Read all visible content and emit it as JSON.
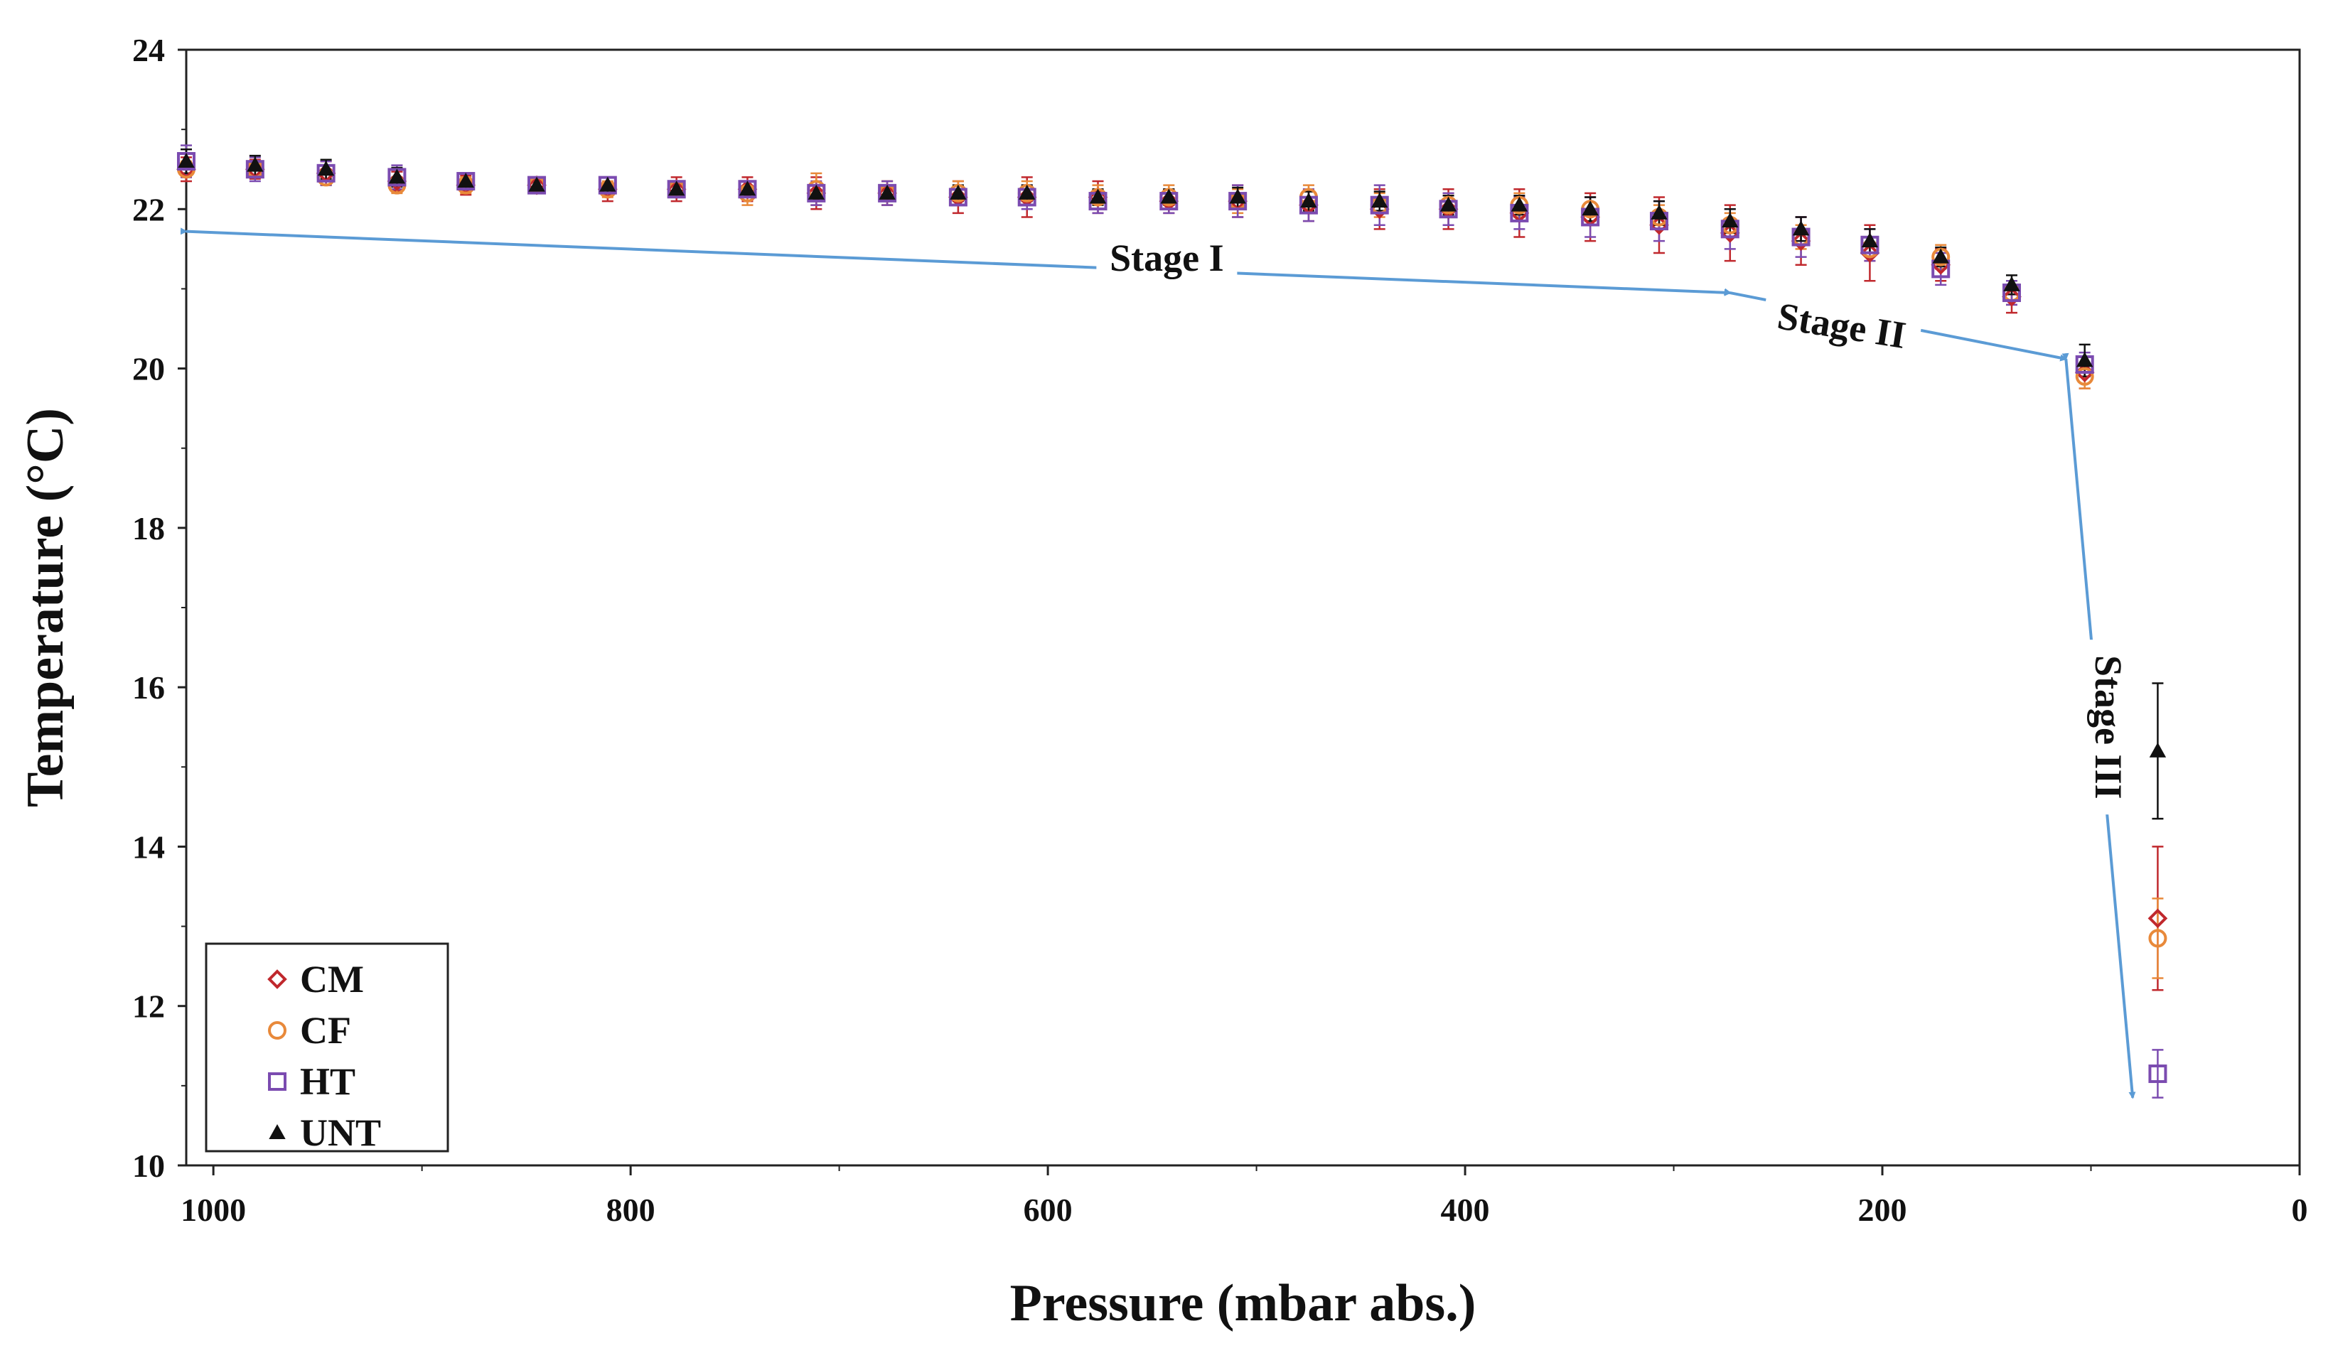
{
  "chart_data": {
    "type": "scatter",
    "title": "",
    "xlabel": "Pressure (mbar abs.)",
    "ylabel": "Temperature (°C)",
    "xlim": [
      1013,
      0
    ],
    "ylim": [
      10,
      24
    ],
    "x_ticks": [
      1000,
      800,
      600,
      400,
      200,
      0
    ],
    "y_ticks": [
      10,
      12,
      14,
      16,
      18,
      20,
      22,
      24
    ],
    "x_tick_labels": [
      "1000",
      "800",
      "600",
      "400",
      "200",
      "0"
    ],
    "y_tick_labels": [
      "10",
      "12",
      "14",
      "16",
      "18",
      "20",
      "22",
      "24"
    ],
    "grid": false,
    "legend_position": "bottom-left",
    "x": [
      1013,
      980,
      946,
      912,
      879,
      845,
      811,
      778,
      744,
      711,
      677,
      643,
      610,
      576,
      542,
      509,
      475,
      441,
      408,
      374,
      340,
      307,
      273,
      239,
      206,
      172,
      138,
      103,
      68
    ],
    "series": [
      {
        "name": "CM",
        "color": "#c0282d",
        "marker": "diamond",
        "values": [
          22.5,
          22.5,
          22.45,
          22.35,
          22.3,
          22.3,
          22.25,
          22.25,
          22.25,
          22.2,
          22.2,
          22.15,
          22.15,
          22.15,
          22.1,
          22.1,
          22.05,
          22.0,
          22.0,
          21.95,
          21.9,
          21.8,
          21.7,
          21.6,
          21.45,
          21.3,
          20.9,
          19.95,
          13.1
        ],
        "errors": [
          0.15,
          0.12,
          0.15,
          0.12,
          0.12,
          0.1,
          0.15,
          0.15,
          0.15,
          0.2,
          0.15,
          0.2,
          0.25,
          0.2,
          0.15,
          0.2,
          0.2,
          0.25,
          0.25,
          0.3,
          0.3,
          0.35,
          0.35,
          0.3,
          0.35,
          0.2,
          0.2,
          0.2,
          0.9
        ]
      },
      {
        "name": "CF",
        "color": "#e8893a",
        "marker": "circle",
        "values": [
          22.5,
          22.5,
          22.4,
          22.3,
          22.3,
          22.3,
          22.25,
          22.25,
          22.2,
          22.25,
          22.2,
          22.2,
          22.2,
          22.15,
          22.15,
          22.1,
          22.15,
          22.05,
          22.05,
          22.05,
          22.0,
          21.9,
          21.8,
          21.65,
          21.5,
          21.4,
          20.95,
          19.9,
          12.85
        ],
        "errors": [
          0.1,
          0.1,
          0.1,
          0.1,
          0.1,
          0.1,
          0.1,
          0.1,
          0.15,
          0.2,
          0.15,
          0.15,
          0.15,
          0.15,
          0.15,
          0.15,
          0.15,
          0.15,
          0.15,
          0.15,
          0.15,
          0.15,
          0.15,
          0.15,
          0.15,
          0.15,
          0.15,
          0.15,
          0.5
        ]
      },
      {
        "name": "HT",
        "color": "#7b4bb0",
        "marker": "square",
        "values": [
          22.6,
          22.5,
          22.45,
          22.4,
          22.35,
          22.3,
          22.3,
          22.25,
          22.25,
          22.2,
          22.2,
          22.15,
          22.15,
          22.1,
          22.1,
          22.1,
          22.05,
          22.05,
          22.0,
          21.95,
          21.9,
          21.85,
          21.75,
          21.65,
          21.55,
          21.25,
          20.95,
          20.05,
          11.15
        ],
        "errors": [
          0.2,
          0.15,
          0.15,
          0.15,
          0.1,
          0.1,
          0.1,
          0.1,
          0.1,
          0.15,
          0.15,
          0.1,
          0.15,
          0.15,
          0.15,
          0.2,
          0.2,
          0.25,
          0.2,
          0.2,
          0.25,
          0.25,
          0.25,
          0.25,
          0.2,
          0.2,
          0.15,
          0.15,
          0.3
        ]
      },
      {
        "name": "UNT",
        "color": "#111111",
        "marker": "triangle",
        "values": [
          22.6,
          22.55,
          22.5,
          22.4,
          22.35,
          22.3,
          22.3,
          22.25,
          22.25,
          22.2,
          22.2,
          22.2,
          22.2,
          22.15,
          22.15,
          22.15,
          22.1,
          22.1,
          22.05,
          22.05,
          22.0,
          21.95,
          21.85,
          21.75,
          21.6,
          21.4,
          21.05,
          20.1,
          15.2
        ],
        "errors": [
          0.15,
          0.12,
          0.12,
          0.12,
          0.1,
          0.1,
          0.1,
          0.1,
          0.1,
          0.1,
          0.1,
          0.1,
          0.1,
          0.1,
          0.1,
          0.12,
          0.12,
          0.12,
          0.12,
          0.12,
          0.15,
          0.15,
          0.15,
          0.15,
          0.15,
          0.12,
          0.12,
          0.2,
          0.85
        ]
      }
    ],
    "annotations": [
      {
        "text": "Stage I",
        "rotation": 0,
        "label_at": [
          543,
          21.3
        ],
        "arrows": [
          [
            [
              1013,
              21.72
            ],
            [
              273,
              20.95
            ]
          ]
        ]
      },
      {
        "text": "Stage II",
        "rotation": 9,
        "label_at": [
          220,
          20.45
        ],
        "arrows": [
          [
            [
              273,
              20.95
            ],
            [
              112,
              20.12
            ]
          ]
        ]
      },
      {
        "text": "Stage III",
        "rotation": 90,
        "label_at": [
          95,
          15.5
        ],
        "arrows": [
          [
            [
              112,
              20.12
            ],
            [
              80,
              10.85
            ]
          ]
        ]
      }
    ]
  },
  "colors": {
    "axis": "#222222",
    "arrow": "#5b9bd5",
    "background": "#ffffff"
  }
}
